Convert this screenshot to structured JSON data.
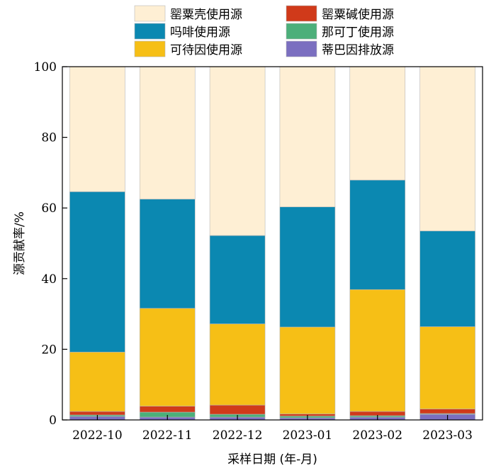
{
  "chart_data": {
    "type": "bar",
    "stacked": true,
    "categories": [
      "2022-10",
      "2022-11",
      "2022-12",
      "2023-01",
      "2023-02",
      "2023-03"
    ],
    "series": [
      {
        "name": "蒂巴因排放源",
        "color": "#7b6fc0",
        "values": [
          1.0,
          0.8,
          0.8,
          0.6,
          0.8,
          1.6
        ]
      },
      {
        "name": "那可丁使用源",
        "color": "#4caf7a",
        "values": [
          0.4,
          1.4,
          0.8,
          0.5,
          0.4,
          0.2
        ]
      },
      {
        "name": "罂粟碱使用源",
        "color": "#d03a1a",
        "values": [
          1.0,
          1.7,
          2.6,
          0.6,
          1.2,
          1.3
        ]
      },
      {
        "name": "可待因使用源",
        "color": "#f6bf16",
        "values": [
          16.8,
          27.7,
          23.0,
          24.6,
          34.5,
          23.3
        ]
      },
      {
        "name": "吗啡使用源",
        "color": "#0b88b1",
        "values": [
          45.4,
          30.9,
          25.0,
          34.0,
          31.0,
          27.1
        ]
      },
      {
        "name": "罂粟壳使用源",
        "color": "#feefd4",
        "values": [
          35.4,
          37.5,
          47.8,
          39.7,
          32.1,
          46.5
        ]
      }
    ],
    "legend_order": [
      "罂粟壳使用源",
      "罂粟碱使用源",
      "吗啡使用源",
      "那可丁使用源",
      "可待因使用源",
      "蒂巴因排放源"
    ],
    "legend_position": "top",
    "xlabel": "采样日期 (年-月)",
    "ylabel": "源贡献率/%",
    "ylim": [
      0,
      100
    ],
    "yticks": [
      0,
      20,
      40,
      60,
      80,
      100
    ],
    "grid": false
  }
}
